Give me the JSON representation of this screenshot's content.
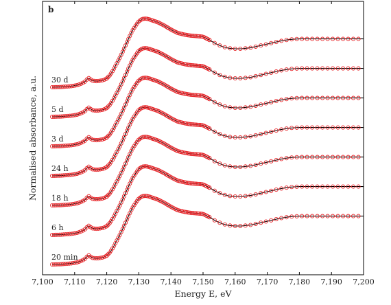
{
  "chart_data": {
    "type": "line",
    "panel_label": "b",
    "xlabel": "Energy E, eV",
    "ylabel": "Normalised absorbance, a.u.",
    "xlim": [
      7100,
      7200
    ],
    "x_ticks": [
      7100,
      7110,
      7120,
      7130,
      7140,
      7150,
      7160,
      7170,
      7180,
      7190,
      7200
    ],
    "x_tick_labels": [
      "7,100",
      "7,110",
      "7,120",
      "7,130",
      "7,140",
      "7,150",
      "7,160",
      "7,170",
      "7,180",
      "7,190",
      "7,200"
    ],
    "y_ticks_shown": false,
    "series_style": {
      "fit_color": "#000000",
      "data_color": "#e8262a",
      "data_marker": "open-circle"
    },
    "spectra": [
      {
        "label": "30 d",
        "offset": 6
      },
      {
        "label": "5 d",
        "offset": 5
      },
      {
        "label": "3 d",
        "offset": 4
      },
      {
        "label": "24 h",
        "offset": 3
      },
      {
        "label": "18 h",
        "offset": 2
      },
      {
        "label": "6 h",
        "offset": 1
      },
      {
        "label": "20 min",
        "offset": 0
      }
    ],
    "profile": {
      "x": [
        7103,
        7106,
        7109,
        7111,
        7113,
        7114.3,
        7115.5,
        7117,
        7119,
        7120,
        7121,
        7122,
        7123,
        7124,
        7125,
        7126,
        7127,
        7128,
        7129,
        7130,
        7131,
        7132,
        7133,
        7134,
        7136,
        7138,
        7140,
        7142,
        7144,
        7146,
        7148,
        7150,
        7152,
        7154,
        7156,
        7158,
        7160,
        7162,
        7165,
        7168,
        7171,
        7174,
        7177,
        7180,
        7184,
        7188,
        7192,
        7196,
        7200
      ],
      "y": [
        0.0,
        0.005,
        0.02,
        0.04,
        0.09,
        0.17,
        0.12,
        0.11,
        0.13,
        0.16,
        0.22,
        0.31,
        0.42,
        0.53,
        0.65,
        0.78,
        0.91,
        1.03,
        1.12,
        1.2,
        1.24,
        1.25,
        1.24,
        1.22,
        1.18,
        1.12,
        1.05,
        0.99,
        0.96,
        0.94,
        0.93,
        0.92,
        0.86,
        0.79,
        0.74,
        0.71,
        0.7,
        0.7,
        0.72,
        0.76,
        0.8,
        0.84,
        0.87,
        0.88,
        0.88,
        0.88,
        0.88,
        0.88,
        0.88
      ]
    }
  }
}
